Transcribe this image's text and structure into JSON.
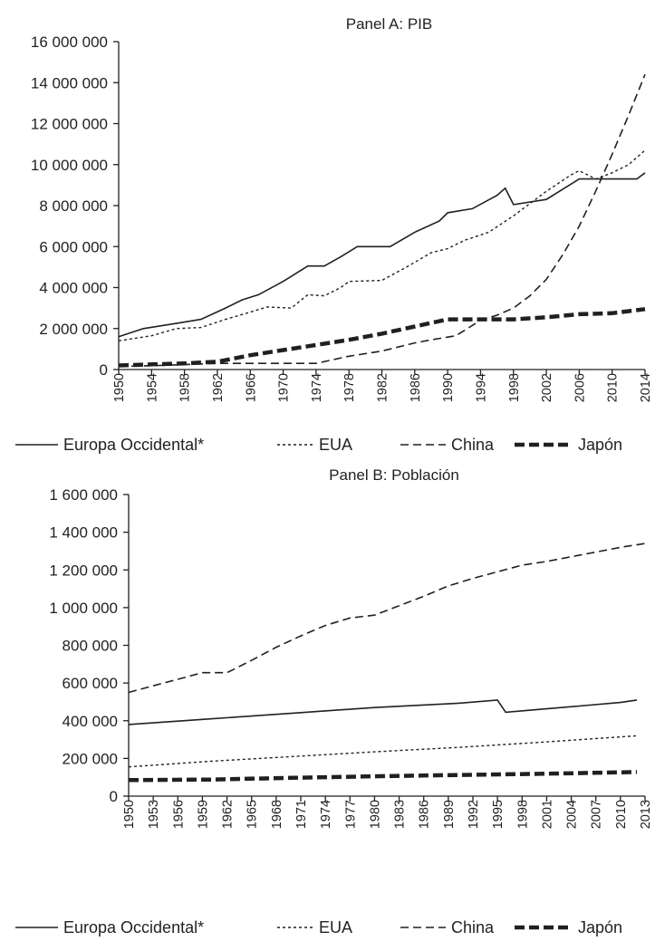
{
  "chart_data": [
    {
      "type": "line",
      "title": "Panel A: PIB",
      "xlabel": "",
      "ylabel": "",
      "ylim": [
        0,
        16000000
      ],
      "xlim": [
        1950,
        2014
      ],
      "y_ticks": [
        "0",
        "2 000 000",
        "4 000 000",
        "6 000 000",
        "8 000 000",
        "10 000 000",
        "12 000 000",
        "14 000 000",
        "16 000 000"
      ],
      "x_ticks": [
        "1950",
        "1954",
        "1958",
        "1962",
        "1966",
        "1970",
        "1974",
        "1978",
        "1982",
        "1986",
        "1990",
        "1994",
        "1998",
        "2002",
        "2006",
        "2010",
        "2014"
      ],
      "grid": false,
      "legend": "bottom",
      "series": [
        {
          "name": "Europa Occidental*",
          "style": "solid",
          "x": [
            1950,
            1953,
            1957,
            1960,
            1963,
            1965,
            1967,
            1970,
            1973,
            1975,
            1977,
            1979,
            1982,
            1983,
            1986,
            1989,
            1990,
            1993,
            1996,
            1997,
            1998,
            2002,
            2006,
            2010,
            2013,
            2014
          ],
          "y": [
            1600000,
            2000000,
            2250000,
            2450000,
            3000000,
            3400000,
            3650000,
            4300000,
            5050000,
            5050000,
            5500000,
            6000000,
            6000000,
            6000000,
            6700000,
            7250000,
            7650000,
            7850000,
            8500000,
            8850000,
            8050000,
            8300000,
            9300000,
            9300000,
            9300000,
            9600000
          ]
        },
        {
          "name": "EUA",
          "style": "dotted",
          "x": [
            1950,
            1954,
            1957,
            1960,
            1963,
            1966,
            1968,
            1971,
            1973,
            1975,
            1977,
            1978,
            1982,
            1985,
            1988,
            1990,
            1992,
            1995,
            1998,
            2002,
            2005,
            2006,
            2008,
            2010,
            2012,
            2014
          ],
          "y": [
            1400000,
            1650000,
            2000000,
            2050000,
            2450000,
            2800000,
            3050000,
            3000000,
            3650000,
            3600000,
            4000000,
            4300000,
            4350000,
            5000000,
            5700000,
            5900000,
            6300000,
            6700000,
            7500000,
            8700000,
            9500000,
            9700000,
            9300000,
            9600000,
            10000000,
            10700000
          ]
        },
        {
          "name": "China",
          "style": "dashed",
          "x": [
            1950,
            1955,
            1962,
            1966,
            1970,
            1974,
            1978,
            1982,
            1986,
            1988,
            1991,
            1994,
            1996,
            1998,
            2000,
            2002,
            2004,
            2006,
            2008,
            2010,
            2012,
            2014
          ],
          "y": [
            150000,
            200000,
            300000,
            300000,
            300000,
            300000,
            650000,
            900000,
            1300000,
            1450000,
            1650000,
            2400000,
            2650000,
            3000000,
            3600000,
            4400000,
            5600000,
            7000000,
            8700000,
            10500000,
            12400000,
            14400000
          ]
        },
        {
          "name": "Japón",
          "style": "thick-dashed",
          "x": [
            1950,
            1954,
            1958,
            1962,
            1966,
            1970,
            1974,
            1978,
            1982,
            1986,
            1990,
            1994,
            1998,
            2002,
            2006,
            2010,
            2014
          ],
          "y": [
            200000,
            250000,
            300000,
            380000,
            700000,
            950000,
            1200000,
            1450000,
            1750000,
            2100000,
            2450000,
            2450000,
            2450000,
            2550000,
            2700000,
            2750000,
            2950000
          ]
        }
      ]
    },
    {
      "type": "line",
      "title": "Panel B: Población",
      "xlabel": "",
      "ylabel": "",
      "ylim": [
        0,
        1600000
      ],
      "xlim": [
        1950,
        2013
      ],
      "y_ticks": [
        "0",
        "200 000",
        "400 000",
        "600 000",
        "800 000",
        "1 000 000",
        "1 200 000",
        "1 400 000",
        "1 600 000"
      ],
      "x_ticks": [
        "1950",
        "1953",
        "1956",
        "1959",
        "1962",
        "1965",
        "1968",
        "1971",
        "1974",
        "1977",
        "1980",
        "1983",
        "1986",
        "1989",
        "1992",
        "1995",
        "1998",
        "2001",
        "2004",
        "2007",
        "2010",
        "2013"
      ],
      "grid": false,
      "legend": "bottom",
      "series": [
        {
          "name": "Europa Occidental*",
          "style": "solid",
          "x": [
            1950,
            1960,
            1970,
            1980,
            1990,
            1995,
            1996,
            2000,
            2005,
            2010,
            2012
          ],
          "y": [
            380000,
            410000,
            440000,
            470000,
            492000,
            510000,
            445000,
            460000,
            478000,
            497000,
            510000
          ]
        },
        {
          "name": "EUA",
          "style": "dotted",
          "x": [
            1950,
            1960,
            1970,
            1980,
            1990,
            2000,
            2012
          ],
          "y": [
            155000,
            185000,
            210000,
            235000,
            258000,
            285000,
            320000
          ]
        },
        {
          "name": "China",
          "style": "dashed",
          "x": [
            1950,
            1953,
            1956,
            1959,
            1962,
            1965,
            1968,
            1971,
            1974,
            1977,
            1980,
            1983,
            1986,
            1989,
            1992,
            1995,
            1998,
            2001,
            2004,
            2007,
            2010,
            2013
          ],
          "y": [
            550000,
            585000,
            620000,
            655000,
            655000,
            720000,
            790000,
            850000,
            905000,
            945000,
            960000,
            1010000,
            1060000,
            1115000,
            1155000,
            1190000,
            1225000,
            1245000,
            1270000,
            1295000,
            1320000,
            1340000
          ]
        },
        {
          "name": "Japón",
          "style": "thick-dashed",
          "x": [
            1950,
            1960,
            1970,
            1980,
            1990,
            2000,
            2012
          ],
          "y": [
            85000,
            88000,
            97000,
            105000,
            112000,
            118000,
            128000
          ]
        }
      ]
    }
  ]
}
